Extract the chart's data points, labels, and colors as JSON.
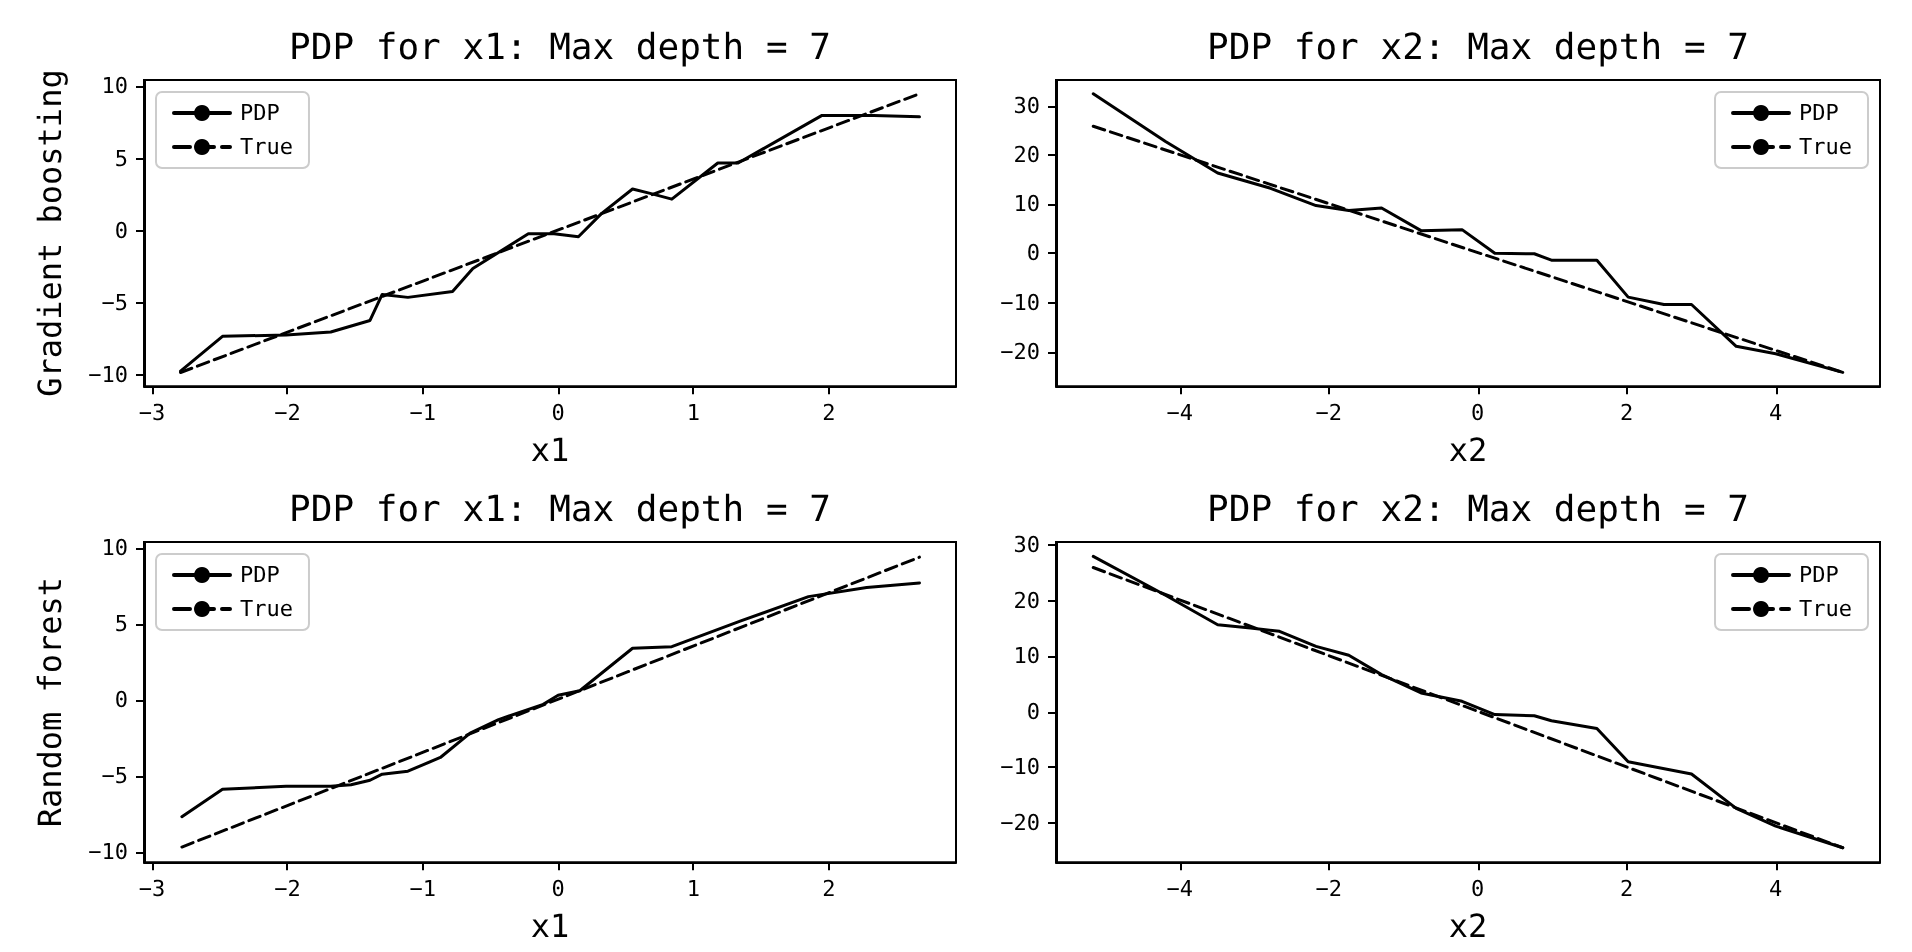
{
  "chart_data": [
    {
      "type": "line",
      "title": "PDP for x1: Max depth = 7",
      "xlabel": "x1",
      "ylabel": "Gradient boosting",
      "xlim": [
        -3.06,
        2.94
      ],
      "ylim": [
        -10.75,
        10.45
      ],
      "xticks": [
        -3,
        -2,
        -1,
        0,
        1,
        2
      ],
      "yticks": [
        -10,
        -5,
        0,
        5,
        10
      ],
      "legend": "top left",
      "marker": "none",
      "grid": false,
      "series": [
        {
          "name": "PDP",
          "color": "#000000",
          "line_style": "solid",
          "x": [
            -2.79,
            -2.48,
            -2.01,
            -1.68,
            -1.39,
            -1.3,
            -1.11,
            -0.78,
            -0.63,
            -0.22,
            -0.03,
            0.15,
            0.32,
            0.55,
            0.68,
            0.84,
            1.18,
            1.33,
            1.95,
            2.33,
            2.67
          ],
          "values": [
            -9.7,
            -7.3,
            -7.2,
            -7.0,
            -6.2,
            -4.4,
            -4.6,
            -4.2,
            -2.6,
            -0.2,
            -0.2,
            -0.4,
            1.2,
            2.9,
            2.6,
            2.2,
            4.7,
            4.7,
            8.0,
            8.0,
            7.9
          ]
        },
        {
          "name": "True",
          "color": "#000000",
          "line_style": "dashed",
          "x": [
            -2.79,
            2.67
          ],
          "values": [
            -9.8,
            9.5
          ]
        }
      ]
    },
    {
      "type": "line",
      "title": "PDP for x2: Max depth = 7",
      "xlabel": "x2",
      "xlim": [
        -5.66,
        5.4
      ],
      "ylim": [
        -27.0,
        35.2
      ],
      "xticks": [
        -4,
        -2,
        0,
        2,
        4
      ],
      "yticks": [
        -20,
        -10,
        0,
        10,
        20,
        30
      ],
      "legend": "top right",
      "marker": "none",
      "grid": false,
      "series": [
        {
          "name": "PDP",
          "color": "#000000",
          "line_style": "solid",
          "x": [
            -5.16,
            -4.19,
            -3.49,
            -2.78,
            -2.17,
            -1.73,
            -1.29,
            -0.76,
            -0.21,
            0.23,
            0.76,
            0.99,
            1.6,
            2.02,
            2.5,
            2.87,
            3.47,
            4.0,
            4.9
          ],
          "values": [
            32.4,
            22.7,
            16.3,
            13.2,
            9.7,
            8.7,
            9.2,
            4.6,
            4.8,
            0.0,
            -0.1,
            -1.4,
            -1.4,
            -8.9,
            -10.4,
            -10.4,
            -18.9,
            -20.4,
            -24.2
          ]
        },
        {
          "name": "True",
          "color": "#000000",
          "line_style": "dashed",
          "x": [
            -5.16,
            4.9
          ],
          "values": [
            25.8,
            -24.2
          ]
        }
      ]
    },
    {
      "type": "line",
      "title": "PDP for x1: Max depth = 7",
      "xlabel": "x1",
      "ylabel": "Random forest",
      "xlim": [
        -3.06,
        2.94
      ],
      "ylim": [
        -10.7,
        10.4
      ],
      "xticks": [
        -3,
        -2,
        -1,
        0,
        1,
        2
      ],
      "yticks": [
        -10,
        -5,
        0,
        5,
        10
      ],
      "legend": "top left",
      "marker": "none",
      "grid": false,
      "series": [
        {
          "name": "PDP",
          "color": "#000000",
          "line_style": "solid",
          "x": [
            -2.78,
            -2.48,
            -2.01,
            -1.68,
            -1.53,
            -1.39,
            -1.3,
            -1.11,
            -0.87,
            -0.65,
            -0.44,
            -0.11,
            0.0,
            0.16,
            0.55,
            0.84,
            1.35,
            1.85,
            2.28,
            2.67
          ],
          "values": [
            -7.7,
            -5.9,
            -5.7,
            -5.7,
            -5.6,
            -5.3,
            -4.9,
            -4.7,
            -3.8,
            -2.2,
            -1.3,
            -0.3,
            0.3,
            0.6,
            3.4,
            3.5,
            5.2,
            6.8,
            7.4,
            7.7
          ]
        },
        {
          "name": "True",
          "color": "#000000",
          "line_style": "dashed",
          "x": [
            -2.78,
            2.67
          ],
          "values": [
            -9.7,
            9.4
          ]
        }
      ]
    },
    {
      "type": "line",
      "title": "PDP for x2: Max depth = 7",
      "xlabel": "x2",
      "xlim": [
        -5.66,
        5.4
      ],
      "ylim": [
        -27.1,
        30.6
      ],
      "xticks": [
        -4,
        -2,
        0,
        2,
        4
      ],
      "yticks": [
        -20,
        -10,
        0,
        10,
        20,
        30
      ],
      "legend": "top right",
      "marker": "none",
      "grid": false,
      "series": [
        {
          "name": "PDP",
          "color": "#000000",
          "line_style": "solid",
          "x": [
            -5.16,
            -4.19,
            -3.49,
            -3.05,
            -2.66,
            -2.17,
            -1.73,
            -1.29,
            -0.76,
            -0.21,
            0.23,
            0.76,
            0.99,
            1.6,
            2.02,
            2.87,
            3.47,
            4.0,
            4.9
          ],
          "values": [
            28.0,
            21.0,
            15.7,
            15.1,
            14.5,
            11.8,
            10.2,
            6.7,
            3.4,
            1.9,
            -0.5,
            -0.7,
            -1.6,
            -3.0,
            -9.0,
            -11.2,
            -17.4,
            -20.6,
            -24.5
          ]
        },
        {
          "name": "True",
          "color": "#000000",
          "line_style": "dashed",
          "x": [
            -5.16,
            4.9
          ],
          "values": [
            26.0,
            -24.5
          ]
        }
      ]
    }
  ]
}
